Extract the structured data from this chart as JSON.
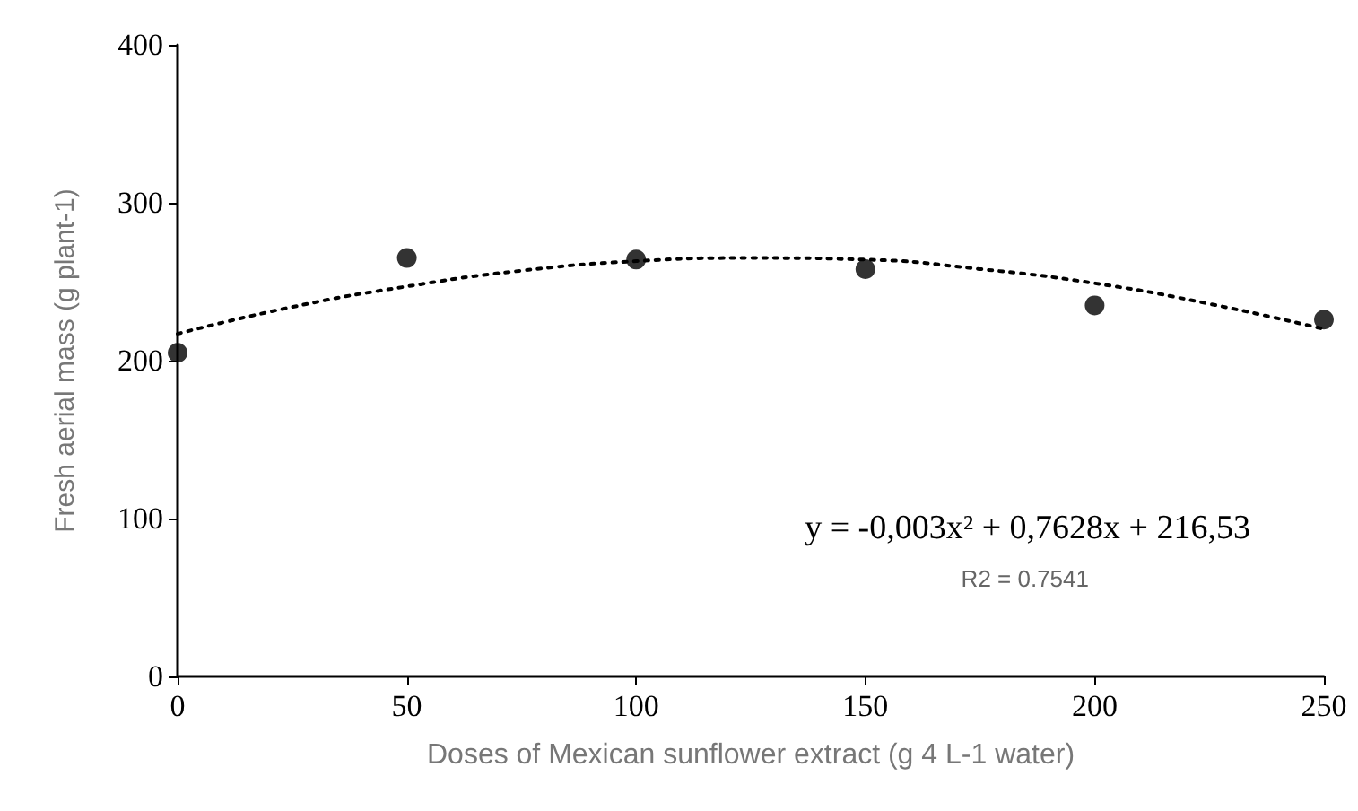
{
  "chart_data": {
    "type": "scatter",
    "xlabel": "Doses of Mexican sunflower extract (g 4 L-1 water)",
    "ylabel": "Fresh aerial mass (g plant-1)",
    "xlim": [
      0,
      250
    ],
    "xticks": [
      0,
      50,
      100,
      150,
      200,
      250
    ],
    "ylim": [
      0,
      400
    ],
    "yticks": [
      0,
      100,
      200,
      300,
      400
    ],
    "marker": "circle",
    "series": [
      {
        "color": "#000000",
        "x": [
          0,
          50,
          100,
          150,
          200,
          250
        ],
        "values": [
          205,
          265,
          264,
          258,
          235,
          226
        ]
      },
      {
        "type": "line",
        "color": "#000000",
        "line_style": "dotted",
        "marker": "none",
        "x": [
          0,
          25,
          50,
          75,
          100,
          125,
          150,
          175,
          200,
          225,
          250
        ],
        "values": [
          217,
          234,
          247,
          257,
          263,
          265,
          264,
          258,
          249,
          236,
          220
        ]
      }
    ],
    "annotations": [
      "y = -0,003x² + 0,7628x + 216,53",
      "R2 = 0.7541"
    ]
  }
}
